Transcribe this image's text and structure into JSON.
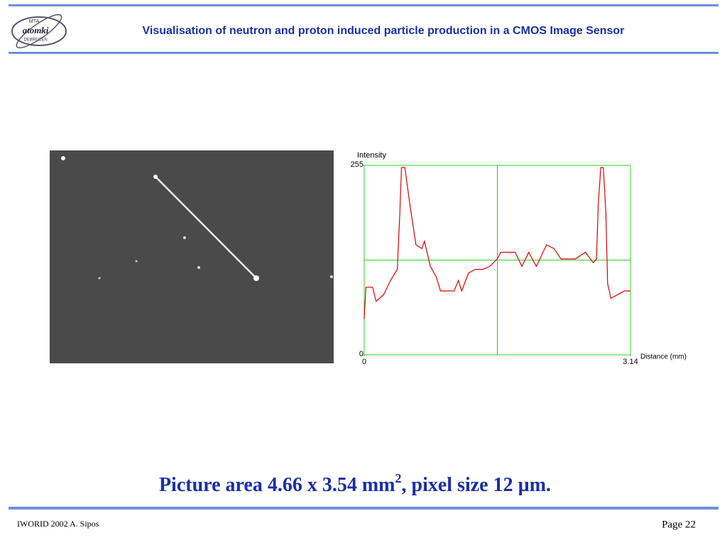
{
  "header": {
    "title": "Visualisation of neutron and proton induced particle production in a CMOS Image Sensor",
    "logo": {
      "top": "MTA",
      "middle": "atomki",
      "bottom": "DEBRECEN"
    }
  },
  "chart_data": {
    "type": "line",
    "y_label": "Intensity",
    "x_label": "Distance (mm)",
    "color": "#e00000",
    "x": [
      0,
      0.02,
      0.1,
      0.14,
      0.23,
      0.31,
      0.39,
      0.42,
      0.44,
      0.48,
      0.54,
      0.61,
      0.68,
      0.71,
      0.78,
      0.85,
      0.9,
      0.98,
      1.06,
      1.11,
      1.15,
      1.23,
      1.31,
      1.4,
      1.48,
      1.57,
      1.61,
      1.69,
      1.78,
      1.86,
      1.94,
      2.03,
      2.15,
      2.24,
      2.32,
      2.4,
      2.49,
      2.61,
      2.7,
      2.74,
      2.76,
      2.79,
      2.82,
      2.85,
      2.87,
      2.91,
      2.99,
      3.07,
      3.14
    ],
    "values": [
      48,
      91,
      91,
      72,
      81,
      100,
      115,
      191,
      252,
      252,
      201,
      148,
      143,
      153,
      119,
      105,
      86,
      86,
      86,
      100,
      86,
      110,
      115,
      115,
      119,
      129,
      138,
      138,
      138,
      119,
      138,
      119,
      148,
      143,
      129,
      129,
      129,
      138,
      124,
      129,
      201,
      252,
      252,
      191,
      96,
      76,
      81,
      86,
      86
    ],
    "xlim": [
      0,
      3.14
    ],
    "ylim": [
      0,
      255
    ],
    "xticks": [
      0,
      3.14
    ],
    "yticks": [
      0,
      255
    ]
  },
  "caption": {
    "text": "Picture area 4.66 x 3.54 mm",
    "superscript": "2",
    "rest": ", pixel size 12 ",
    "unit": "µm."
  },
  "footer": {
    "left": "IWORID 2002 A. Sipos",
    "right": "Page 22"
  }
}
